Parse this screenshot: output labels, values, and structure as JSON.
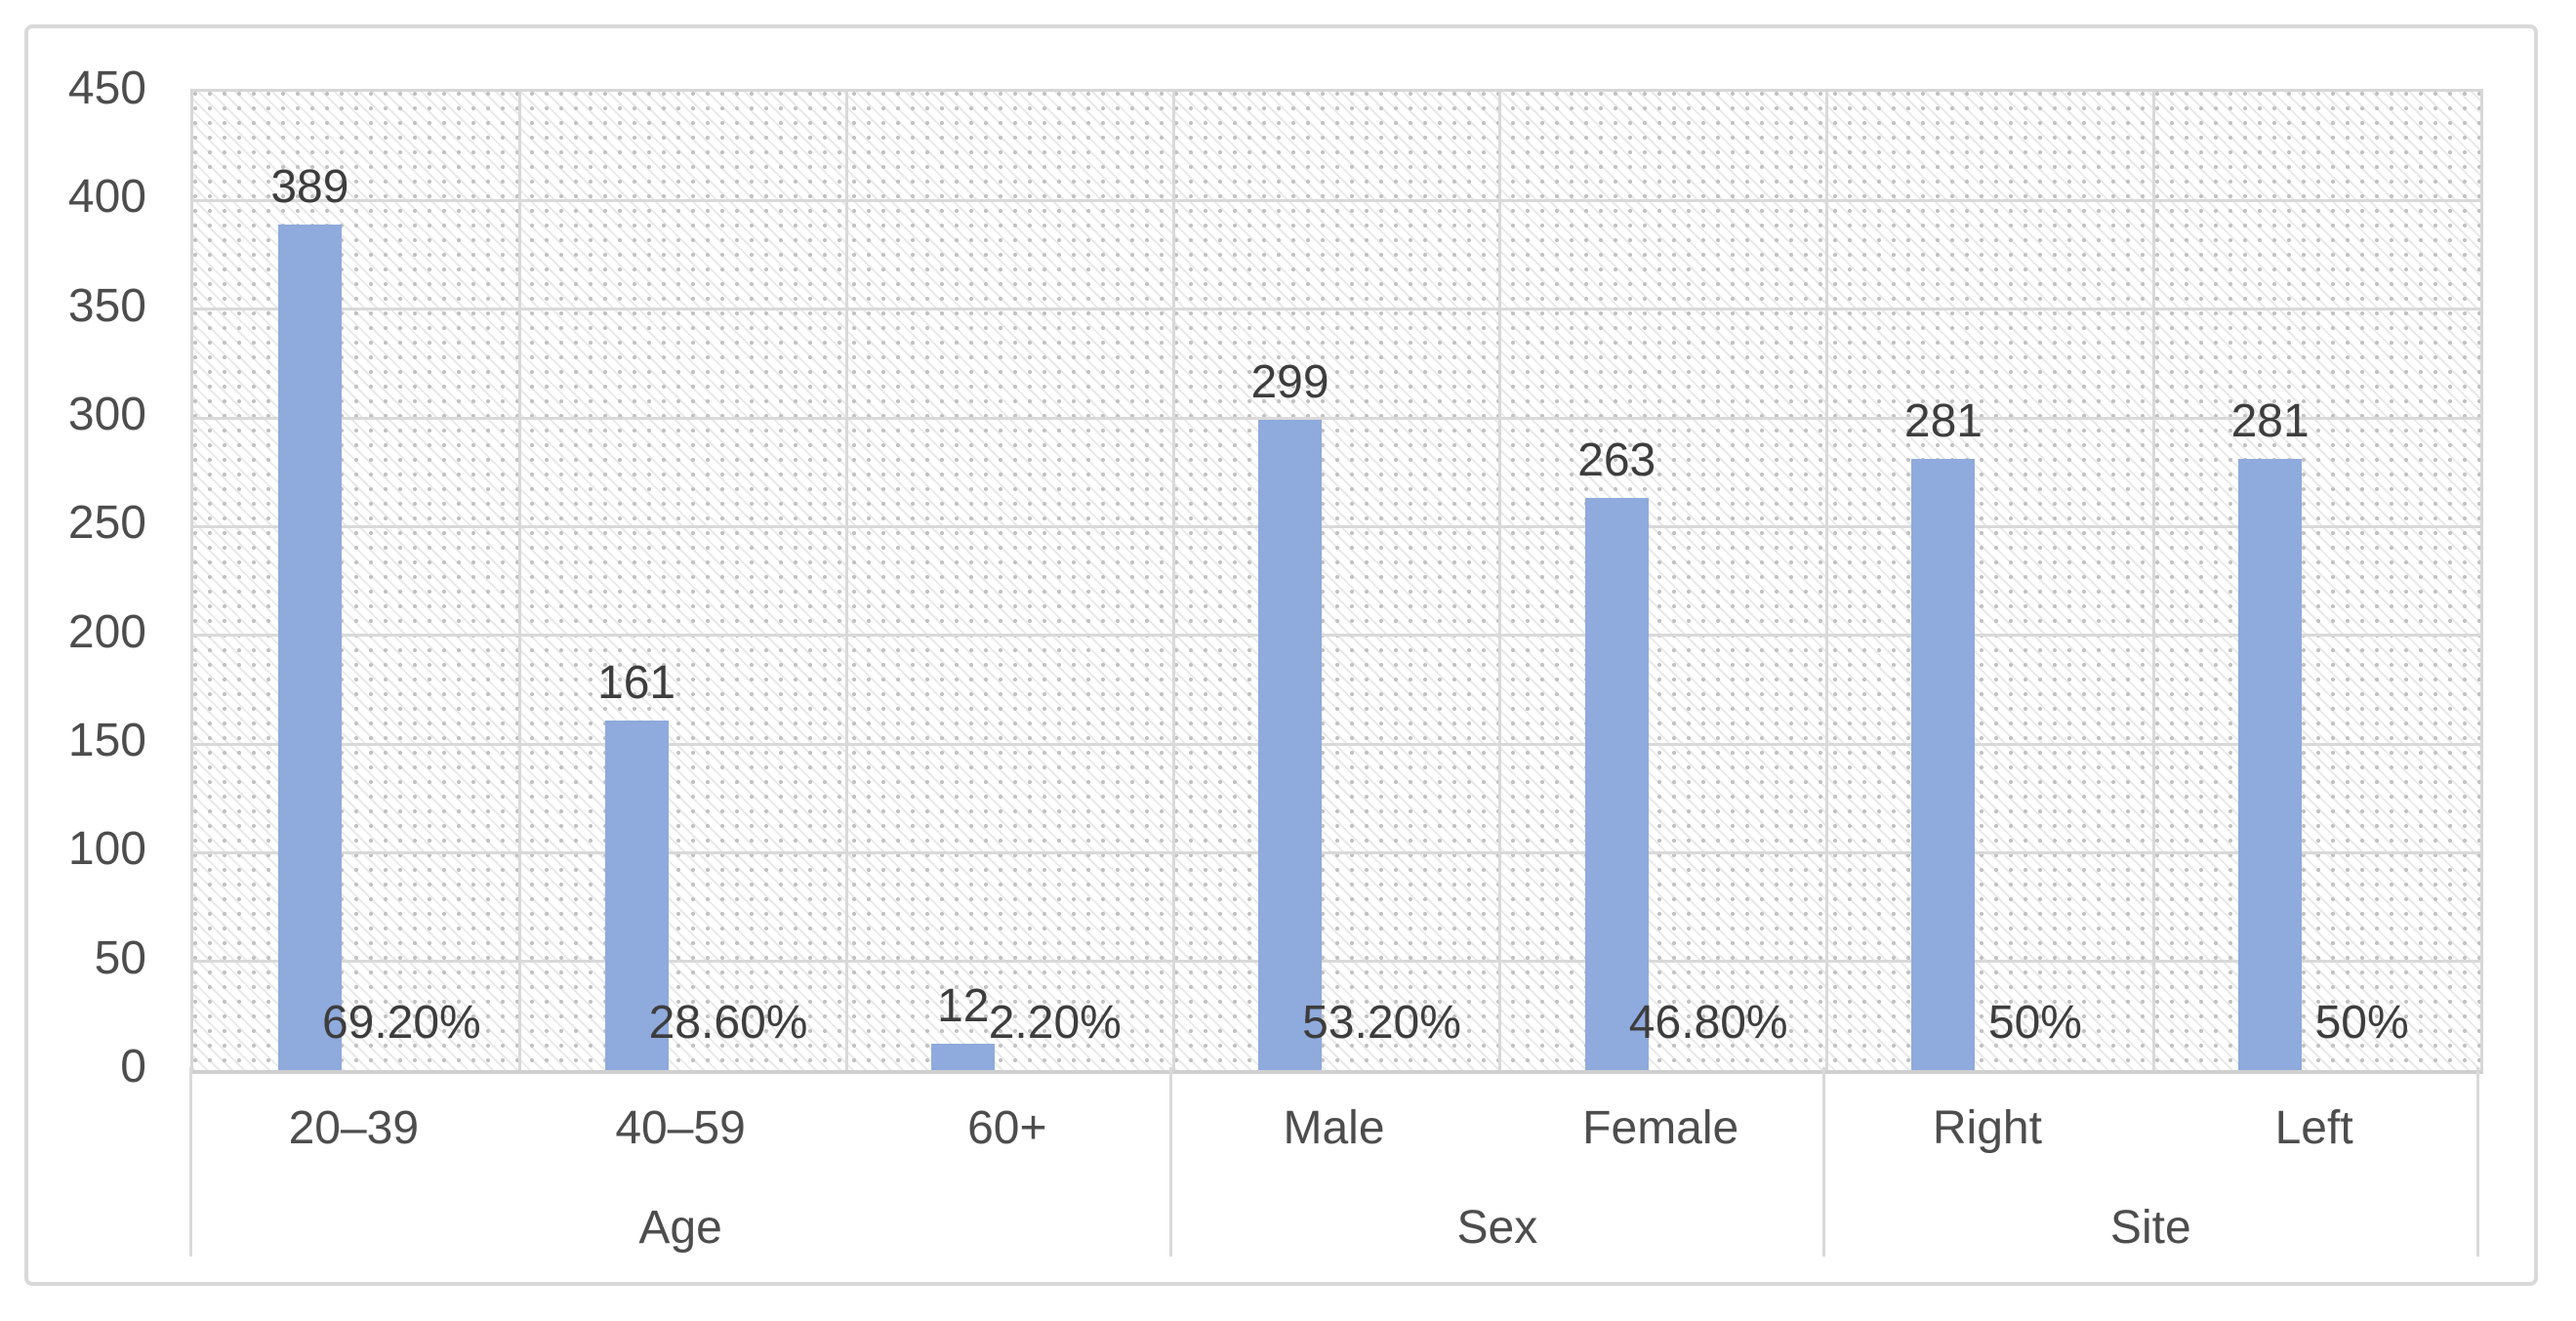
{
  "chart_data": {
    "type": "bar",
    "title": "",
    "xlabel": "",
    "ylabel": "",
    "categories": [
      "20–39",
      "40–59",
      "60+",
      "Male",
      "Female",
      "Right",
      "Left"
    ],
    "values": [
      389,
      161,
      12,
      299,
      263,
      281,
      281
    ],
    "percent_labels": [
      "69.20%",
      "28.60%",
      "2.20%",
      "53.20%",
      "46.80%",
      "50%",
      "50%"
    ],
    "groups": [
      {
        "label": "Age",
        "categories": [
          "20–39",
          "40–59",
          "60+"
        ]
      },
      {
        "label": "Sex",
        "categories": [
          "Male",
          "Female"
        ]
      },
      {
        "label": "Site",
        "categories": [
          "Right",
          "Left"
        ]
      }
    ],
    "y_ticks": [
      0,
      50,
      100,
      150,
      200,
      250,
      300,
      350,
      400,
      450
    ],
    "ylim": [
      0,
      450
    ],
    "grid": true,
    "legend_position": "none",
    "plot_background": "light-diagonal-hatch",
    "colors": {
      "bar": "#8faadc",
      "gridline": "#d9d9d9",
      "axis_text": "#4d4d4d",
      "data_label_text": "#3d3d3d",
      "frame_border": "#d9d9d9"
    }
  }
}
